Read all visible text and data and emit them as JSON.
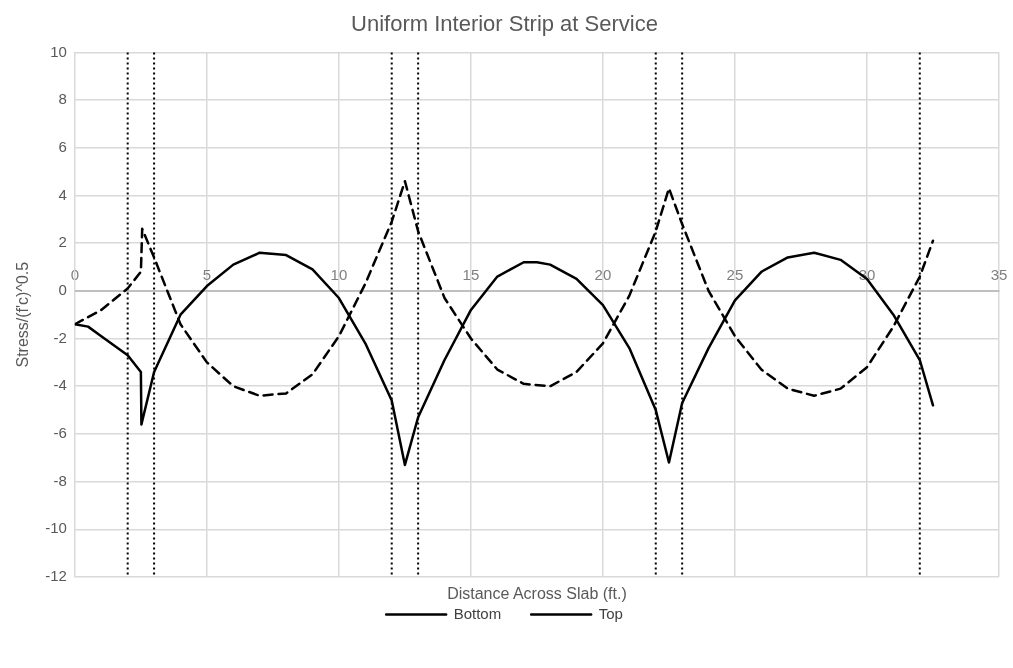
{
  "chart_data": {
    "type": "line",
    "title": "Uniform Interior Strip at Service",
    "xlabel": "Distance Across Slab (ft.)",
    "ylabel": "Stress/(f'c)^0.5",
    "xlim": [
      0,
      35
    ],
    "xticks": [
      0,
      5,
      10,
      15,
      20,
      25,
      30,
      35
    ],
    "ylim": [
      -12,
      10
    ],
    "yticks": [
      -12,
      -10,
      -8,
      -6,
      -4,
      -2,
      0,
      2,
      4,
      6,
      8,
      10
    ],
    "grid": true,
    "legend": "bottom",
    "marker": "none",
    "series": [
      {
        "name": "Bottom",
        "color": "#000000",
        "line_style": "solid",
        "x": [
          0,
          0.5,
          1,
          1.5,
          2,
          2.5,
          2.52,
          3,
          4,
          5,
          6,
          7,
          8,
          9,
          10,
          11,
          12,
          12.5,
          13,
          14,
          15,
          16,
          17,
          17.5,
          18,
          19,
          20,
          21,
          22,
          22.5,
          23,
          24,
          25,
          26,
          27,
          28,
          29,
          30,
          31,
          32,
          32.5
        ],
        "values": [
          -1.4,
          -1.5,
          -1.9,
          -2.3,
          -2.7,
          -3.4,
          -5.6,
          -3.4,
          -1.0,
          0.2,
          1.1,
          1.6,
          1.5,
          0.9,
          -0.3,
          -2.2,
          -4.6,
          -7.3,
          -5.3,
          -2.9,
          -0.8,
          0.6,
          1.2,
          1.2,
          1.1,
          0.5,
          -0.6,
          -2.4,
          -5.0,
          -7.2,
          -4.7,
          -2.4,
          -0.4,
          0.8,
          1.4,
          1.6,
          1.3,
          0.5,
          -1.0,
          -2.9,
          -4.8
        ]
      },
      {
        "name": "Top",
        "color": "#000000",
        "line_style": "dashed",
        "x": [
          0,
          1,
          2,
          2.5,
          2.55,
          3,
          4,
          5,
          6,
          7,
          8,
          9,
          10,
          11,
          12,
          12.5,
          13,
          14,
          15,
          16,
          17,
          18,
          19,
          20,
          21,
          22,
          22.5,
          23,
          24,
          25,
          26,
          27,
          28,
          29,
          30,
          31,
          32,
          32.5
        ],
        "values": [
          -1.4,
          -0.8,
          0.1,
          0.8,
          2.6,
          1.4,
          -1.4,
          -3.0,
          -4.0,
          -4.4,
          -4.3,
          -3.5,
          -1.9,
          0.3,
          2.9,
          4.6,
          2.5,
          -0.3,
          -2.0,
          -3.3,
          -3.9,
          -4.0,
          -3.4,
          -2.2,
          -0.2,
          2.5,
          4.3,
          2.8,
          0.0,
          -1.9,
          -3.3,
          -4.1,
          -4.4,
          -4.1,
          -3.2,
          -1.5,
          0.6,
          2.1
        ]
      }
    ],
    "ref_lines": [
      {
        "axis": "x",
        "value": 2,
        "color": "#000000",
        "line_style": "dotted"
      },
      {
        "axis": "x",
        "value": 3,
        "color": "#000000",
        "line_style": "dotted"
      },
      {
        "axis": "x",
        "value": 12,
        "color": "#000000",
        "line_style": "dotted"
      },
      {
        "axis": "x",
        "value": 13,
        "color": "#000000",
        "line_style": "dotted"
      },
      {
        "axis": "x",
        "value": 22,
        "color": "#000000",
        "line_style": "dotted"
      },
      {
        "axis": "x",
        "value": 23,
        "color": "#000000",
        "line_style": "dotted"
      },
      {
        "axis": "x",
        "value": 32,
        "color": "#000000",
        "line_style": "dotted"
      }
    ]
  }
}
